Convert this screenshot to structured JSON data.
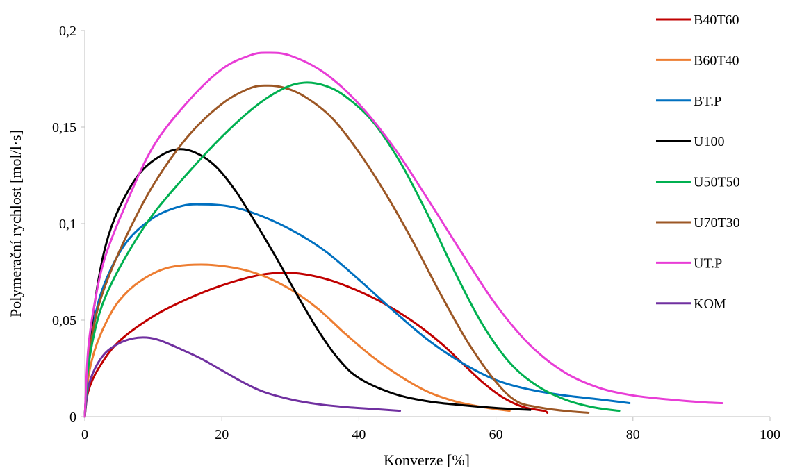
{
  "chart_data": {
    "type": "line",
    "title": "",
    "xlabel": "Konverze [%]",
    "ylabel": "Polymerační rychlost [mol/l·s]",
    "xlim": [
      0,
      100
    ],
    "ylim": [
      0,
      0.2
    ],
    "x_ticks": [
      "0",
      "20",
      "40",
      "60",
      "80",
      "100"
    ],
    "y_ticks": [
      "0",
      "0,05",
      "0,1",
      "0,15",
      "0,2"
    ],
    "grid": false,
    "legend_position": "right",
    "series": [
      {
        "name": "B40T60",
        "color": "#c00000",
        "points": [
          [
            0,
            0
          ],
          [
            0.5,
            0.013
          ],
          [
            2,
            0.025
          ],
          [
            5,
            0.039
          ],
          [
            10,
            0.052
          ],
          [
            15,
            0.061
          ],
          [
            20,
            0.068
          ],
          [
            25,
            0.073
          ],
          [
            28.5,
            0.0745
          ],
          [
            32,
            0.0738
          ],
          [
            36,
            0.0705
          ],
          [
            40,
            0.065
          ],
          [
            44,
            0.058
          ],
          [
            48,
            0.049
          ],
          [
            52,
            0.038
          ],
          [
            55,
            0.028
          ],
          [
            58,
            0.018
          ],
          [
            61,
            0.01
          ],
          [
            64,
            0.005
          ],
          [
            67,
            0.003
          ],
          [
            67.5,
            0.002
          ]
        ]
      },
      {
        "name": "B60T40",
        "color": "#ed7d31",
        "points": [
          [
            0,
            0
          ],
          [
            0.5,
            0.02
          ],
          [
            1.5,
            0.035
          ],
          [
            3,
            0.048
          ],
          [
            5,
            0.06
          ],
          [
            8,
            0.07
          ],
          [
            12,
            0.077
          ],
          [
            17,
            0.0788
          ],
          [
            22,
            0.077
          ],
          [
            26,
            0.073
          ],
          [
            30,
            0.066
          ],
          [
            34,
            0.056
          ],
          [
            38,
            0.043
          ],
          [
            42,
            0.031
          ],
          [
            46,
            0.021
          ],
          [
            50,
            0.013
          ],
          [
            54,
            0.008
          ],
          [
            58,
            0.005
          ],
          [
            62,
            0.003
          ]
        ]
      },
      {
        "name": "BT.P",
        "color": "#0070c0",
        "points": [
          [
            0,
            0
          ],
          [
            0.5,
            0.03
          ],
          [
            1.5,
            0.052
          ],
          [
            3,
            0.07
          ],
          [
            6,
            0.09
          ],
          [
            10,
            0.103
          ],
          [
            14,
            0.109
          ],
          [
            17,
            0.11
          ],
          [
            21,
            0.109
          ],
          [
            25,
            0.105
          ],
          [
            30,
            0.097
          ],
          [
            35,
            0.086
          ],
          [
            40,
            0.071
          ],
          [
            45,
            0.055
          ],
          [
            50,
            0.04
          ],
          [
            55,
            0.028
          ],
          [
            60,
            0.019
          ],
          [
            65,
            0.014
          ],
          [
            70,
            0.011
          ],
          [
            75,
            0.009
          ],
          [
            79.5,
            0.007
          ]
        ]
      },
      {
        "name": "U100",
        "color": "#000000",
        "points": [
          [
            0,
            0
          ],
          [
            0.5,
            0.03
          ],
          [
            1.5,
            0.06
          ],
          [
            3,
            0.088
          ],
          [
            5,
            0.108
          ],
          [
            8,
            0.126
          ],
          [
            11,
            0.135
          ],
          [
            13.5,
            0.1385
          ],
          [
            16,
            0.137
          ],
          [
            19,
            0.13
          ],
          [
            22,
            0.117
          ],
          [
            25,
            0.1
          ],
          [
            28,
            0.082
          ],
          [
            31,
            0.063
          ],
          [
            34,
            0.045
          ],
          [
            37,
            0.03
          ],
          [
            40,
            0.02
          ],
          [
            45,
            0.012
          ],
          [
            50,
            0.008
          ],
          [
            55,
            0.006
          ],
          [
            60,
            0.0045
          ],
          [
            65,
            0.0035
          ]
        ]
      },
      {
        "name": "U50T50",
        "color": "#00b050",
        "points": [
          [
            0,
            0
          ],
          [
            0.5,
            0.025
          ],
          [
            1.5,
            0.045
          ],
          [
            3,
            0.062
          ],
          [
            6,
            0.083
          ],
          [
            10,
            0.105
          ],
          [
            15,
            0.126
          ],
          [
            20,
            0.145
          ],
          [
            25,
            0.161
          ],
          [
            29,
            0.17
          ],
          [
            32,
            0.173
          ],
          [
            35,
            0.1715
          ],
          [
            38,
            0.166
          ],
          [
            42,
            0.153
          ],
          [
            46,
            0.132
          ],
          [
            50,
            0.105
          ],
          [
            54,
            0.075
          ],
          [
            58,
            0.048
          ],
          [
            62,
            0.028
          ],
          [
            66,
            0.016
          ],
          [
            70,
            0.009
          ],
          [
            74,
            0.005
          ],
          [
            78,
            0.003
          ]
        ]
      },
      {
        "name": "U70T30",
        "color": "#9c5725",
        "points": [
          [
            0,
            0
          ],
          [
            0.5,
            0.028
          ],
          [
            1.5,
            0.05
          ],
          [
            3,
            0.068
          ],
          [
            6,
            0.093
          ],
          [
            10,
            0.12
          ],
          [
            15,
            0.145
          ],
          [
            20,
            0.162
          ],
          [
            24,
            0.17
          ],
          [
            26.5,
            0.1715
          ],
          [
            29,
            0.1705
          ],
          [
            32,
            0.166
          ],
          [
            36,
            0.155
          ],
          [
            40,
            0.137
          ],
          [
            44,
            0.115
          ],
          [
            48,
            0.09
          ],
          [
            52,
            0.063
          ],
          [
            56,
            0.038
          ],
          [
            60,
            0.018
          ],
          [
            63,
            0.008
          ],
          [
            66,
            0.005
          ],
          [
            70,
            0.003
          ],
          [
            73.5,
            0.002
          ]
        ]
      },
      {
        "name": "UT.P",
        "color": "#e83dd6",
        "points": [
          [
            0,
            0
          ],
          [
            0.5,
            0.035
          ],
          [
            1.5,
            0.06
          ],
          [
            3,
            0.083
          ],
          [
            6,
            0.11
          ],
          [
            10,
            0.14
          ],
          [
            15,
            0.163
          ],
          [
            20,
            0.18
          ],
          [
            24,
            0.187
          ],
          [
            26.5,
            0.1885
          ],
          [
            30,
            0.187
          ],
          [
            35,
            0.178
          ],
          [
            40,
            0.162
          ],
          [
            45,
            0.14
          ],
          [
            50,
            0.113
          ],
          [
            55,
            0.085
          ],
          [
            60,
            0.058
          ],
          [
            65,
            0.037
          ],
          [
            70,
            0.023
          ],
          [
            75,
            0.015
          ],
          [
            80,
            0.011
          ],
          [
            85,
            0.009
          ],
          [
            90,
            0.0075
          ],
          [
            93,
            0.007
          ]
        ]
      },
      {
        "name": "KOM",
        "color": "#7030a0",
        "points": [
          [
            0,
            0
          ],
          [
            0.5,
            0.015
          ],
          [
            1.5,
            0.025
          ],
          [
            3,
            0.033
          ],
          [
            5,
            0.038
          ],
          [
            7,
            0.0405
          ],
          [
            9,
            0.041
          ],
          [
            11,
            0.0395
          ],
          [
            14,
            0.035
          ],
          [
            17,
            0.03
          ],
          [
            20,
            0.024
          ],
          [
            23,
            0.018
          ],
          [
            26,
            0.013
          ],
          [
            30,
            0.009
          ],
          [
            34,
            0.0065
          ],
          [
            38,
            0.005
          ],
          [
            42,
            0.004
          ],
          [
            46,
            0.003
          ]
        ]
      }
    ]
  }
}
